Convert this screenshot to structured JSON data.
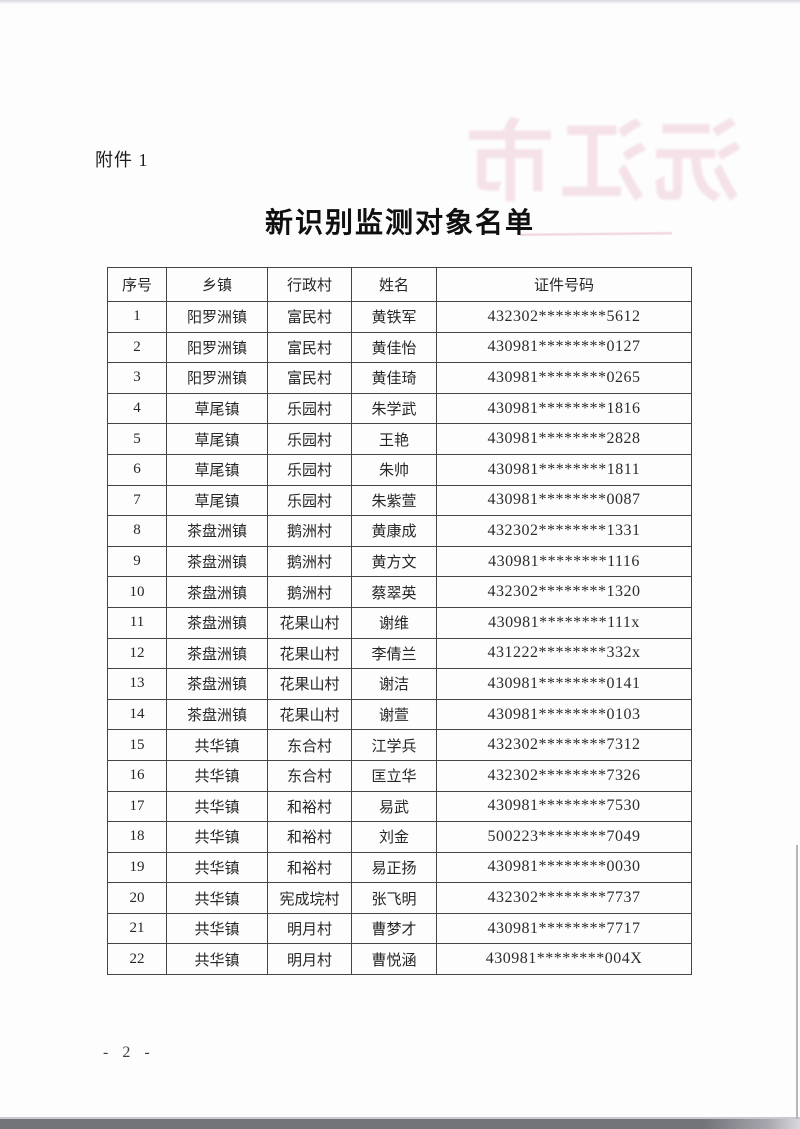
{
  "page": {
    "attachment_label": "附件 1",
    "title": "新识别监测对象名单",
    "page_number": "- 2 -",
    "watermark_text": "沅江市"
  },
  "table": {
    "headers": [
      "序号",
      "乡镇",
      "行政村",
      "姓名",
      "证件号码"
    ],
    "rows": [
      [
        "1",
        "阳罗洲镇",
        "富民村",
        "黄铁军",
        "432302********5612"
      ],
      [
        "2",
        "阳罗洲镇",
        "富民村",
        "黄佳怡",
        "430981********0127"
      ],
      [
        "3",
        "阳罗洲镇",
        "富民村",
        "黄佳琦",
        "430981********0265"
      ],
      [
        "4",
        "草尾镇",
        "乐园村",
        "朱学武",
        "430981********1816"
      ],
      [
        "5",
        "草尾镇",
        "乐园村",
        "王艳",
        "430981********2828"
      ],
      [
        "6",
        "草尾镇",
        "乐园村",
        "朱帅",
        "430981********1811"
      ],
      [
        "7",
        "草尾镇",
        "乐园村",
        "朱紫萱",
        "430981********0087"
      ],
      [
        "8",
        "茶盘洲镇",
        "鹅洲村",
        "黄康成",
        "432302********1331"
      ],
      [
        "9",
        "茶盘洲镇",
        "鹅洲村",
        "黄方文",
        "430981********1116"
      ],
      [
        "10",
        "茶盘洲镇",
        "鹅洲村",
        "蔡翠英",
        "432302********1320"
      ],
      [
        "11",
        "茶盘洲镇",
        "花果山村",
        "谢维",
        "430981********111x"
      ],
      [
        "12",
        "茶盘洲镇",
        "花果山村",
        "李倩兰",
        "431222********332x"
      ],
      [
        "13",
        "茶盘洲镇",
        "花果山村",
        "谢洁",
        "430981********0141"
      ],
      [
        "14",
        "茶盘洲镇",
        "花果山村",
        "谢萱",
        "430981********0103"
      ],
      [
        "15",
        "共华镇",
        "东合村",
        "江学兵",
        "432302********7312"
      ],
      [
        "16",
        "共华镇",
        "东合村",
        "匡立华",
        "432302********7326"
      ],
      [
        "17",
        "共华镇",
        "和裕村",
        "易武",
        "430981********7530"
      ],
      [
        "18",
        "共华镇",
        "和裕村",
        "刘金",
        "500223********7049"
      ],
      [
        "19",
        "共华镇",
        "和裕村",
        "易正扬",
        "430981********0030"
      ],
      [
        "20",
        "共华镇",
        "宪成垸村",
        "张飞明",
        "432302********7737"
      ],
      [
        "21",
        "共华镇",
        "明月村",
        "曹梦才",
        "430981********7717"
      ],
      [
        "22",
        "共华镇",
        "明月村",
        "曹悦涵",
        "430981********004X"
      ]
    ]
  },
  "colors": {
    "watermark_pink": "#e098ad",
    "border": "#454548",
    "text": "#262626",
    "scan_edge_dark": "#73737a"
  }
}
